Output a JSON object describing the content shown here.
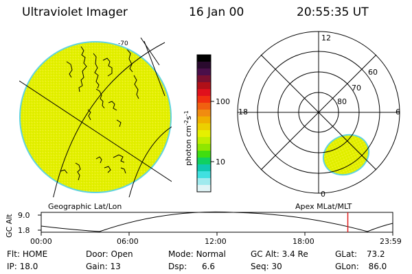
{
  "header": {
    "instrument": "Ultraviolet Imager",
    "date": "16 Jan 00",
    "time": "20:55:35 UT"
  },
  "left_panel": {
    "caption": "Geographic Lat/Lon",
    "disk_color": "#e6f000",
    "rim_color": "#5fd3e0",
    "grid_label": "-70"
  },
  "right_panel": {
    "caption": "Apex MLat/MLT",
    "mlt_labels": {
      "top": "12",
      "left": "18",
      "right": "6",
      "bottom": "0"
    },
    "mlat_labels": [
      "60",
      "70",
      "80"
    ],
    "blob_color": "#e6f000"
  },
  "colorbar": {
    "unit_label": "photon cm",
    "unit_exp1": "-2",
    "unit_mid": "s",
    "unit_exp2": "-1",
    "ticks": [
      "100",
      "10"
    ],
    "colors": [
      "#000000",
      "#2a0a2e",
      "#4a0f4a",
      "#7a1030",
      "#b01018",
      "#e0101c",
      "#f03010",
      "#f06010",
      "#f08c10",
      "#f0b000",
      "#ecd000",
      "#e6f000",
      "#c0ee00",
      "#90e600",
      "#40dd10",
      "#10d060",
      "#10c8b0",
      "#40e0e0",
      "#a0eaee",
      "#e0f4f6"
    ]
  },
  "altitude_strip": {
    "ylabel": "GC Alt",
    "ytick_top": "9.0",
    "ytick_bottom": "1.8",
    "xticks": [
      "00:00",
      "06:00",
      "12:00",
      "18:00",
      "23:59"
    ],
    "marker_hour": 20.93,
    "marker_color": "#e02020"
  },
  "footer": {
    "flt_label": "Flt:",
    "flt_value": "HOME",
    "ip_label": "IP:",
    "ip_value": "18.0",
    "door_label": "Door:",
    "door_value": "Open",
    "gain_label": "Gain:",
    "gain_value": "13",
    "mode_label": "Mode:",
    "mode_value": "Normal",
    "dsp_label": "Dsp:",
    "dsp_value": "6.6",
    "gcalt_label": "GC Alt:",
    "gcalt_value": "3.4 Re",
    "seq_label": "Seq:",
    "seq_value": "30",
    "glat_label": "GLat:",
    "glat_value": "73.2",
    "glon_label": "GLon:",
    "glon_value": "86.0"
  }
}
